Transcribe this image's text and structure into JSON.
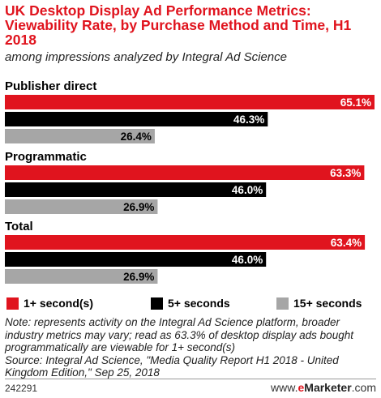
{
  "header": {
    "title": "UK Desktop Display Ad Performance Metrics: Viewability Rate, by Purchase Method and Time, H1 2018",
    "subtitle": "among impressions analyzed by Integral Ad Science"
  },
  "chart_data": {
    "type": "bar",
    "orientation": "horizontal",
    "categories": [
      "Publisher direct",
      "Programmatic",
      "Total"
    ],
    "series": [
      {
        "name": "1+ second(s)",
        "color": "#e0141e",
        "values": [
          65.1,
          63.3,
          63.4
        ]
      },
      {
        "name": "5+ seconds",
        "color": "#000000",
        "values": [
          46.3,
          46.0,
          46.0
        ]
      },
      {
        "name": "15+ seconds",
        "color": "#a6a6a6",
        "values": [
          26.4,
          26.9,
          26.9
        ]
      }
    ],
    "value_suffix": "%",
    "xlim": [
      0,
      65.1
    ],
    "grid": false,
    "legend_position": "bottom"
  },
  "legend": {
    "items": [
      {
        "label": "1+ second(s)",
        "color": "#e0141e"
      },
      {
        "label": "5+ seconds",
        "color": "#000000"
      },
      {
        "label": "15+ seconds",
        "color": "#a6a6a6"
      }
    ]
  },
  "notes": {
    "note": "Note: represents activity on the Integral Ad Science platform, broader industry metrics may vary; read as 63.3% of desktop display ads bought programmatically are viewable for 1+ second(s)",
    "source": "Source: Integral Ad Science, \"Media Quality Report H1 2018 - United Kingdom Edition,\" Sep 25, 2018"
  },
  "footer": {
    "chart_id": "242291",
    "brand_prefix": "www.",
    "brand_e": "e",
    "brand_name": "Marketer",
    "brand_suffix": ".com"
  }
}
